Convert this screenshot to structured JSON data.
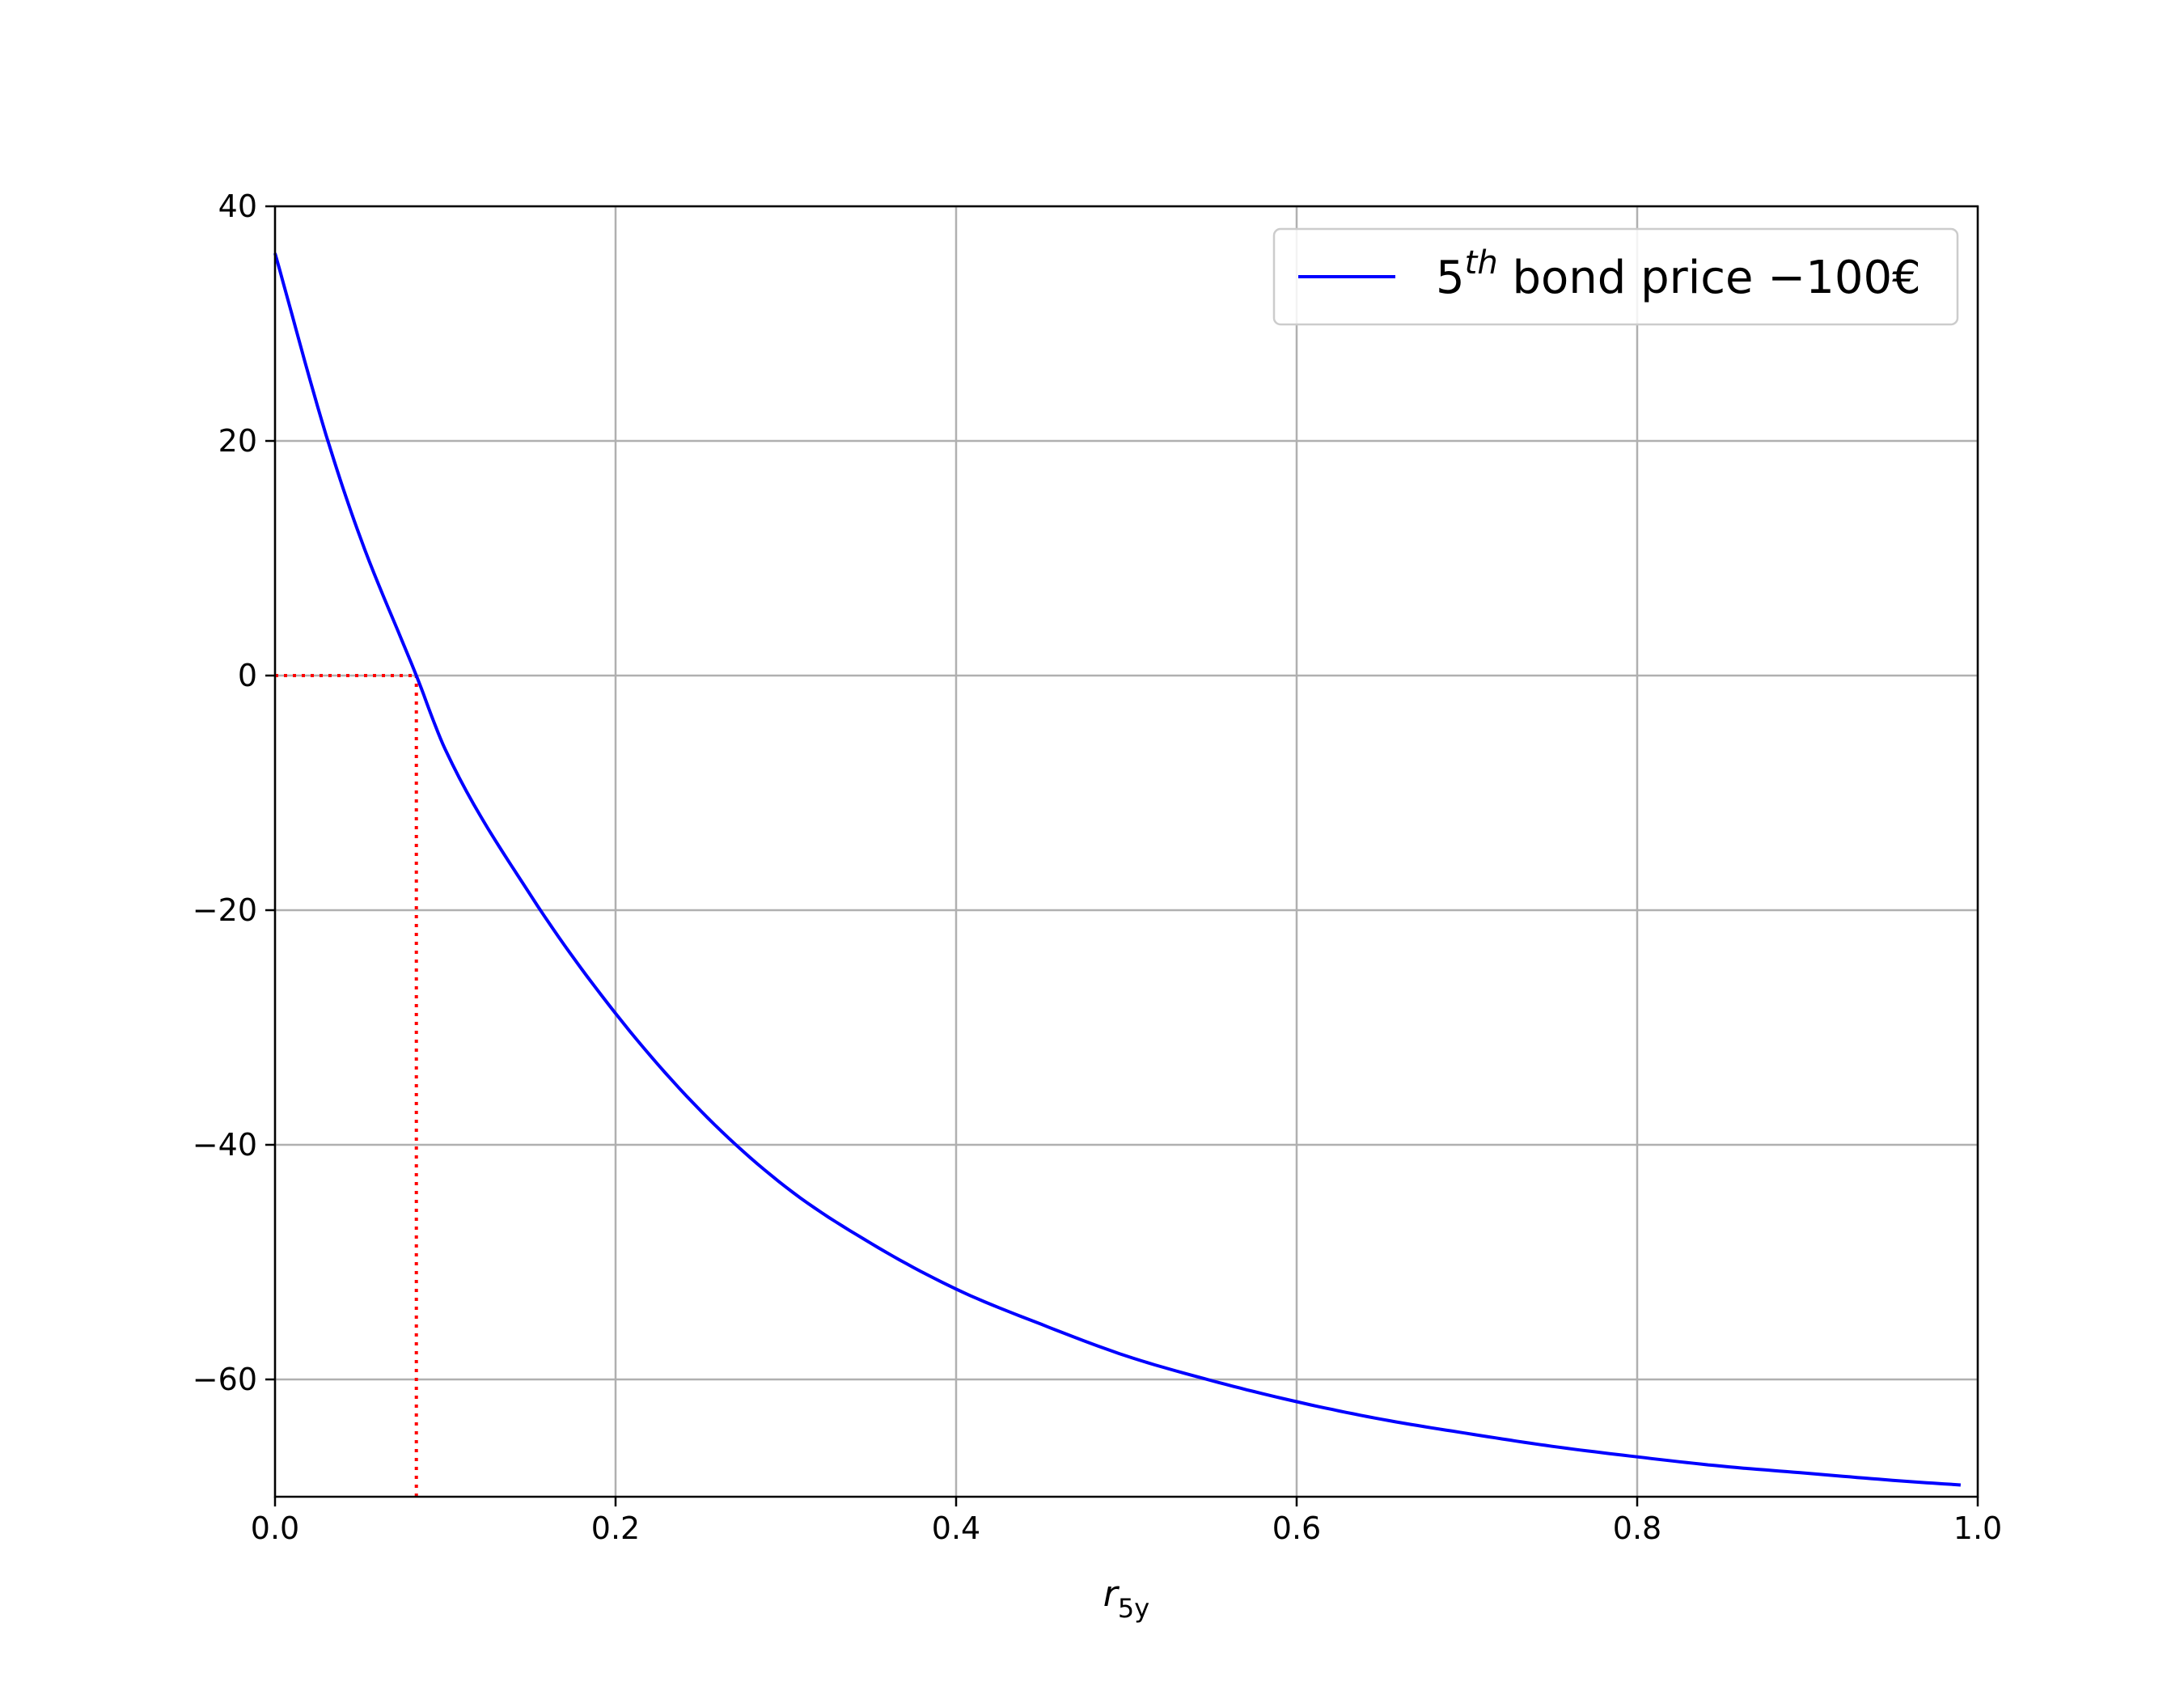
{
  "chart_data": {
    "type": "line",
    "title": "",
    "xlabel": "r",
    "xlabel_subscript": "5y",
    "ylabel": "",
    "xlim": [
      0.0,
      1.0
    ],
    "ylim": [
      -70,
      40
    ],
    "grid": true,
    "legend_position": "top-right",
    "x_ticks": [
      0.0,
      0.2,
      0.4,
      0.6,
      0.8,
      1.0
    ],
    "x_tick_labels": [
      "0.0",
      "0.2",
      "0.4",
      "0.6",
      "0.8",
      "1.0"
    ],
    "y_ticks": [
      -60,
      -40,
      -20,
      0,
      20,
      40
    ],
    "y_tick_labels": [
      "−60",
      "−40",
      "−20",
      "0",
      "20",
      "40"
    ],
    "series": [
      {
        "name": "5th bond price −100€",
        "legend": {
          "base": "5",
          "superscript": "th",
          "rest": " bond price −100€"
        },
        "color": "#0000ff",
        "style": "solid",
        "x": [
          0.0,
          0.03,
          0.05,
          0.083,
          0.1,
          0.15,
          0.2,
          0.25,
          0.3,
          0.35,
          0.4,
          0.45,
          0.5,
          0.55,
          0.6,
          0.65,
          0.7,
          0.75,
          0.8,
          0.85,
          0.9,
          0.95,
          0.99
        ],
        "y": [
          36,
          20.5,
          11.8,
          0,
          -6.3,
          -18.7,
          -28.8,
          -37.1,
          -43.6,
          -48.4,
          -52.3,
          -55.3,
          -58.0,
          -60.1,
          -61.9,
          -63.4,
          -64.6,
          -65.7,
          -66.6,
          -67.4,
          -68.0,
          -68.6,
          -69.0
        ]
      }
    ],
    "annotations": [
      {
        "type": "dotted-horizontal",
        "color": "#ff0000",
        "y": 0,
        "x_from": 0.0,
        "x_to": 0.083
      },
      {
        "type": "dotted-vertical",
        "color": "#ff0000",
        "x": 0.083,
        "y_from": -70,
        "y_to": 0
      }
    ]
  }
}
